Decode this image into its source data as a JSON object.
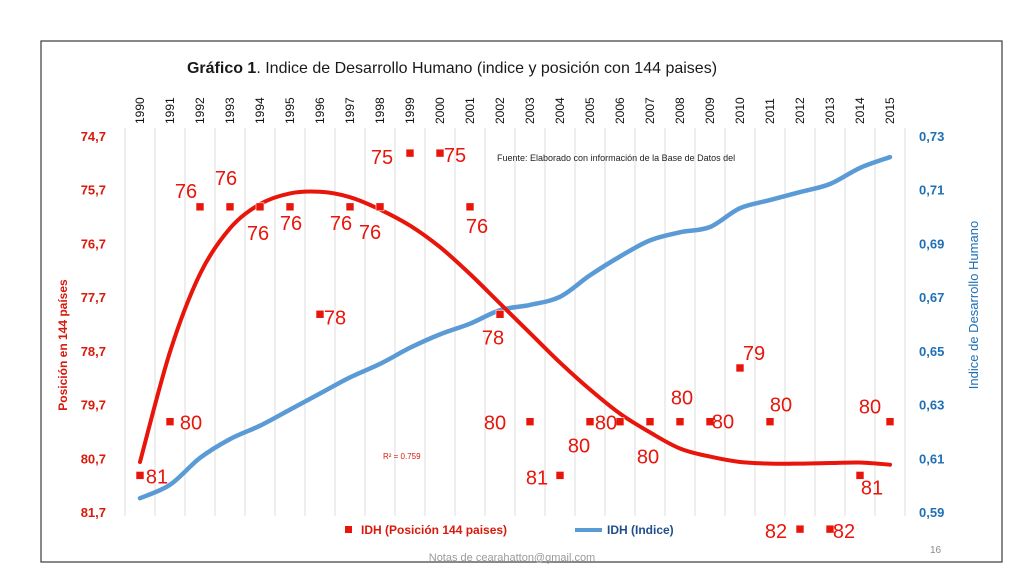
{
  "slide": {
    "footer_note": "Notas de cearahatton@gmail.com",
    "page_number": "16"
  },
  "chart_data": {
    "type": "line",
    "title_bold": "Gráfico 1",
    "title_rest": ". Indice de Desarrollo Humano (indice y posición con 144 paises)",
    "source_note": "Fuente: Elaborado con información de la Base de Datos del",
    "r_squared_label": "R² = 0.759",
    "x": [
      1990,
      1991,
      1992,
      1993,
      1994,
      1995,
      1996,
      1997,
      1998,
      1999,
      2000,
      2001,
      2002,
      2003,
      2004,
      2005,
      2006,
      2007,
      2008,
      2009,
      2010,
      2011,
      2012,
      2013,
      2014,
      2015
    ],
    "x_tick_labels": [
      "1990",
      "1991",
      "1992",
      "1993",
      "1994",
      "1995",
      "1996",
      "1997",
      "1998",
      "1999",
      "2000",
      "2001",
      "2002",
      "2003",
      "2004",
      "2005",
      "2006",
      "2007",
      "2008",
      "2009",
      "2010",
      "2011",
      "2012",
      "2013",
      "2014",
      "2015"
    ],
    "y_left": {
      "label": "Posición en 144 países",
      "inverted": true,
      "range": [
        74.7,
        81.7
      ],
      "tick_values": [
        74.7,
        75.7,
        76.7,
        77.7,
        78.7,
        79.7,
        80.7,
        81.7
      ],
      "tick_labels": [
        "74,7",
        "75,7",
        "76,7",
        "77,7",
        "78,7",
        "79,7",
        "80,7",
        "81,7"
      ],
      "color": "#d9190c"
    },
    "y_right": {
      "label": "Indice de Desarrollo Humano",
      "range": [
        0.59,
        0.73
      ],
      "tick_values": [
        0.59,
        0.61,
        0.63,
        0.65,
        0.67,
        0.69,
        0.71,
        0.73
      ],
      "tick_labels": [
        "0,59",
        "0,61",
        "0,63",
        "0,65",
        "0,67",
        "0,69",
        "0,71",
        "0,73"
      ],
      "color": "#1f6fb5"
    },
    "grid": "vertical",
    "legend_position": "bottom",
    "series": [
      {
        "name": "IDH (Posición 144 paises)",
        "axis": "left",
        "style": "markers",
        "color": "#e8150b",
        "values": [
          81,
          80,
          76,
          76,
          76,
          76,
          78,
          76,
          76,
          75,
          75,
          76,
          78,
          80,
          81,
          80,
          80,
          80,
          80,
          80,
          79,
          80,
          82,
          82,
          81,
          80
        ],
        "point_labels": [
          {
            "text": "81",
            "index": 0
          },
          {
            "text": "80",
            "index": 1
          },
          {
            "text": "76",
            "index": 2
          },
          {
            "text": "76",
            "index": 3
          },
          {
            "text": "76",
            "index": 4
          },
          {
            "text": "76",
            "index": 5
          },
          {
            "text": "78",
            "index": 6
          },
          {
            "text": "76",
            "index": 7
          },
          {
            "text": "76",
            "index": 8
          },
          {
            "text": "75",
            "index": 9
          },
          {
            "text": "75",
            "index": 10
          },
          {
            "text": "76",
            "index": 11
          },
          {
            "text": "78",
            "index": 12
          },
          {
            "text": "80",
            "index": 13
          },
          {
            "text": "81",
            "index": 14
          },
          {
            "text": "80",
            "index": 15
          },
          {
            "text": "80",
            "index": 16
          },
          {
            "text": "80",
            "index": 17
          },
          {
            "text": "80",
            "index": 18
          },
          {
            "text": "80",
            "index": 19
          },
          {
            "text": "79",
            "index": 20
          },
          {
            "text": "80",
            "index": 21
          },
          {
            "text": "82",
            "index": 22
          },
          {
            "text": "82",
            "index": 23
          },
          {
            "text": "81",
            "index": 24
          },
          {
            "text": "80",
            "index": 25
          }
        ]
      },
      {
        "name": "IDH (Indice)",
        "axis": "right",
        "style": "line",
        "color": "#5b9bd5",
        "values": [
          0.5955,
          0.6005,
          0.6105,
          0.6175,
          0.6225,
          0.6285,
          0.6345,
          0.6405,
          0.6455,
          0.6515,
          0.6565,
          0.6605,
          0.6655,
          0.6675,
          0.6705,
          0.6785,
          0.6855,
          0.6915,
          0.6945,
          0.6965,
          0.7035,
          0.7065,
          0.7095,
          0.7125,
          0.7185,
          0.7225
        ]
      }
    ],
    "trendline": {
      "type": "polynomial",
      "axis": "left",
      "color": "#e8150b",
      "values": [
        80.75,
        78.7,
        77.25,
        76.4,
        75.95,
        75.75,
        75.72,
        75.82,
        76.05,
        76.35,
        76.75,
        77.25,
        77.8,
        78.35,
        78.9,
        79.4,
        79.85,
        80.2,
        80.5,
        80.65,
        80.75,
        80.78,
        80.78,
        80.77,
        80.76,
        80.8
      ]
    }
  }
}
